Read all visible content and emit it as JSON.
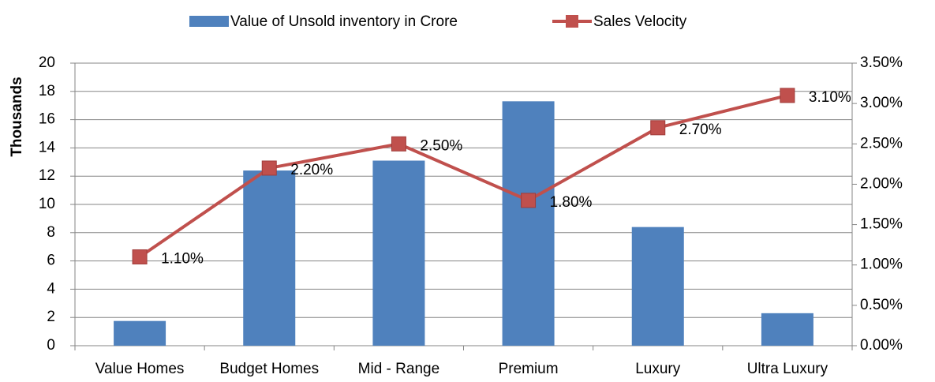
{
  "chart_data": {
    "type": "bar-line",
    "y_label": "Thousands",
    "categories": [
      "Value Homes",
      "Budget Homes",
      "Mid - Range",
      "Premium",
      "Luxury",
      "Ultra Luxury"
    ],
    "series": [
      {
        "name": "Value of Unsold inventory in Crore",
        "type": "bar",
        "color": "#4f81bd",
        "values": [
          1.75,
          12.4,
          13.1,
          17.3,
          8.4,
          2.3
        ]
      },
      {
        "name": "Sales Velocity",
        "type": "line",
        "axis": "y2",
        "color": "#c0504d",
        "values": [
          1.1,
          2.2,
          2.5,
          1.8,
          2.7,
          3.1
        ],
        "value_labels": [
          "1.10%",
          "2.20%",
          "2.50%",
          "1.80%",
          "2.70%",
          "3.10%"
        ]
      }
    ],
    "ylim": [
      0,
      20
    ],
    "yticks": [
      0,
      2,
      4,
      6,
      8,
      10,
      12,
      14,
      16,
      18,
      20
    ],
    "y2lim": [
      0,
      3.5
    ],
    "y2ticks": [
      {
        "value": 0,
        "label": "0.00%"
      },
      {
        "value": 0.5,
        "label": "0.50%"
      },
      {
        "value": 1,
        "label": "1.00%"
      },
      {
        "value": 1.5,
        "label": "1.50%"
      },
      {
        "value": 2,
        "label": "2.00%"
      },
      {
        "value": 2.5,
        "label": "2.50%"
      },
      {
        "value": 3,
        "label": "3.00%"
      },
      {
        "value": 3.5,
        "label": "3.50%"
      }
    ],
    "grid": true,
    "legend": "top"
  }
}
